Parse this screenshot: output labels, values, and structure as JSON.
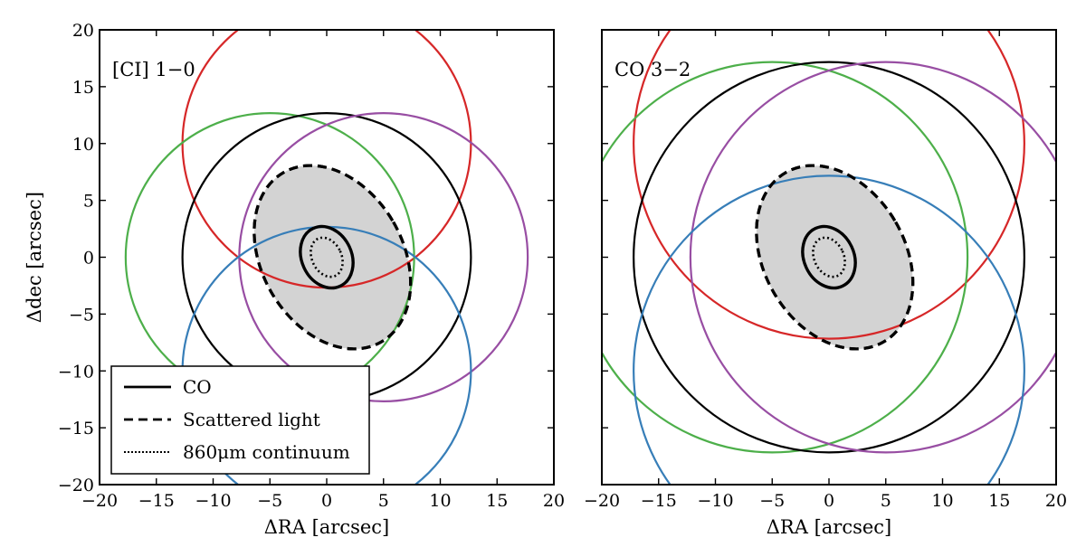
{
  "chart_data": [
    {
      "type": "scatter",
      "panel_label": "[CI] 1−0",
      "xlabel": "ΔRA [arcsec]",
      "ylabel": "Δdec [arcsec]",
      "xlim": [
        -20,
        20
      ],
      "ylim": [
        -20,
        20
      ],
      "x_ticks": [
        -20,
        -15,
        -10,
        -5,
        0,
        5,
        10,
        15,
        20
      ],
      "y_ticks": [
        -20,
        -15,
        -10,
        -5,
        0,
        5,
        10,
        15,
        20
      ],
      "x_tick_labels": [
        "−20",
        "−15",
        "−10",
        "−5",
        "0",
        "5",
        "10",
        "15",
        "20"
      ],
      "y_tick_labels": [
        "−20",
        "−15",
        "−10",
        "−5",
        "0",
        "5",
        "10",
        "15",
        "20"
      ],
      "show_y_tick_labels": true,
      "grid": false,
      "circles": [
        {
          "color": "#d62728",
          "cx": 0,
          "cy": 10,
          "r": 12.7
        },
        {
          "color": "#4daf4a",
          "cx": -5,
          "cy": 0,
          "r": 12.7
        },
        {
          "color": "#000000",
          "cx": 0,
          "cy": 0,
          "r": 12.7
        },
        {
          "color": "#984ea3",
          "cx": 5,
          "cy": 0,
          "r": 12.7
        },
        {
          "color": "#377eb8",
          "cx": 0,
          "cy": -10,
          "r": 12.7
        }
      ],
      "ellipses": [
        {
          "kind": "scattered_light",
          "cx": 0.5,
          "cy": 0,
          "rx": 6.2,
          "ry": 8.6,
          "angle_deg": 30,
          "fill": "#d3d3d3",
          "style": "dashed"
        },
        {
          "kind": "CO",
          "cx": 0,
          "cy": 0,
          "rx": 2.2,
          "ry": 2.8,
          "angle_deg": 25,
          "fill": "none",
          "style": "solid"
        },
        {
          "kind": "continuum",
          "cx": 0,
          "cy": 0,
          "rx": 1.3,
          "ry": 1.8,
          "angle_deg": 25,
          "fill": "none",
          "style": "dotted"
        }
      ],
      "legend": {
        "placement": "lower-left",
        "entries": [
          {
            "label": "CO",
            "style": "solid"
          },
          {
            "label": "Scattered light",
            "style": "dashed"
          },
          {
            "label": "860μm continuum",
            "style": "dotted"
          }
        ]
      }
    },
    {
      "type": "scatter",
      "panel_label": "CO 3−2",
      "xlabel": "ΔRA [arcsec]",
      "ylabel": "",
      "xlim": [
        -20,
        20
      ],
      "ylim": [
        -20,
        20
      ],
      "x_ticks": [
        -20,
        -15,
        -10,
        -5,
        0,
        5,
        10,
        15,
        20
      ],
      "y_ticks": [
        -20,
        -15,
        -10,
        -5,
        0,
        5,
        10,
        15,
        20
      ],
      "x_tick_labels": [
        "−20",
        "−15",
        "−10",
        "−5",
        "0",
        "5",
        "10",
        "15",
        "20"
      ],
      "y_tick_labels": [],
      "show_y_tick_labels": false,
      "grid": false,
      "circles": [
        {
          "color": "#d62728",
          "cx": 0,
          "cy": 10,
          "r": 17.2
        },
        {
          "color": "#4daf4a",
          "cx": -5,
          "cy": 0,
          "r": 17.2
        },
        {
          "color": "#000000",
          "cx": 0,
          "cy": 0,
          "r": 17.2
        },
        {
          "color": "#984ea3",
          "cx": 5,
          "cy": 0,
          "r": 17.2
        },
        {
          "color": "#377eb8",
          "cx": 0,
          "cy": -10,
          "r": 17.2
        }
      ],
      "ellipses": [
        {
          "kind": "scattered_light",
          "cx": 0.5,
          "cy": 0,
          "rx": 6.2,
          "ry": 8.6,
          "angle_deg": 30,
          "fill": "#d3d3d3",
          "style": "dashed"
        },
        {
          "kind": "CO",
          "cx": 0,
          "cy": 0,
          "rx": 2.2,
          "ry": 2.8,
          "angle_deg": 25,
          "fill": "none",
          "style": "solid"
        },
        {
          "kind": "continuum",
          "cx": 0,
          "cy": 0,
          "rx": 1.3,
          "ry": 1.8,
          "angle_deg": 25,
          "fill": "none",
          "style": "dotted"
        }
      ],
      "legend": null
    }
  ]
}
